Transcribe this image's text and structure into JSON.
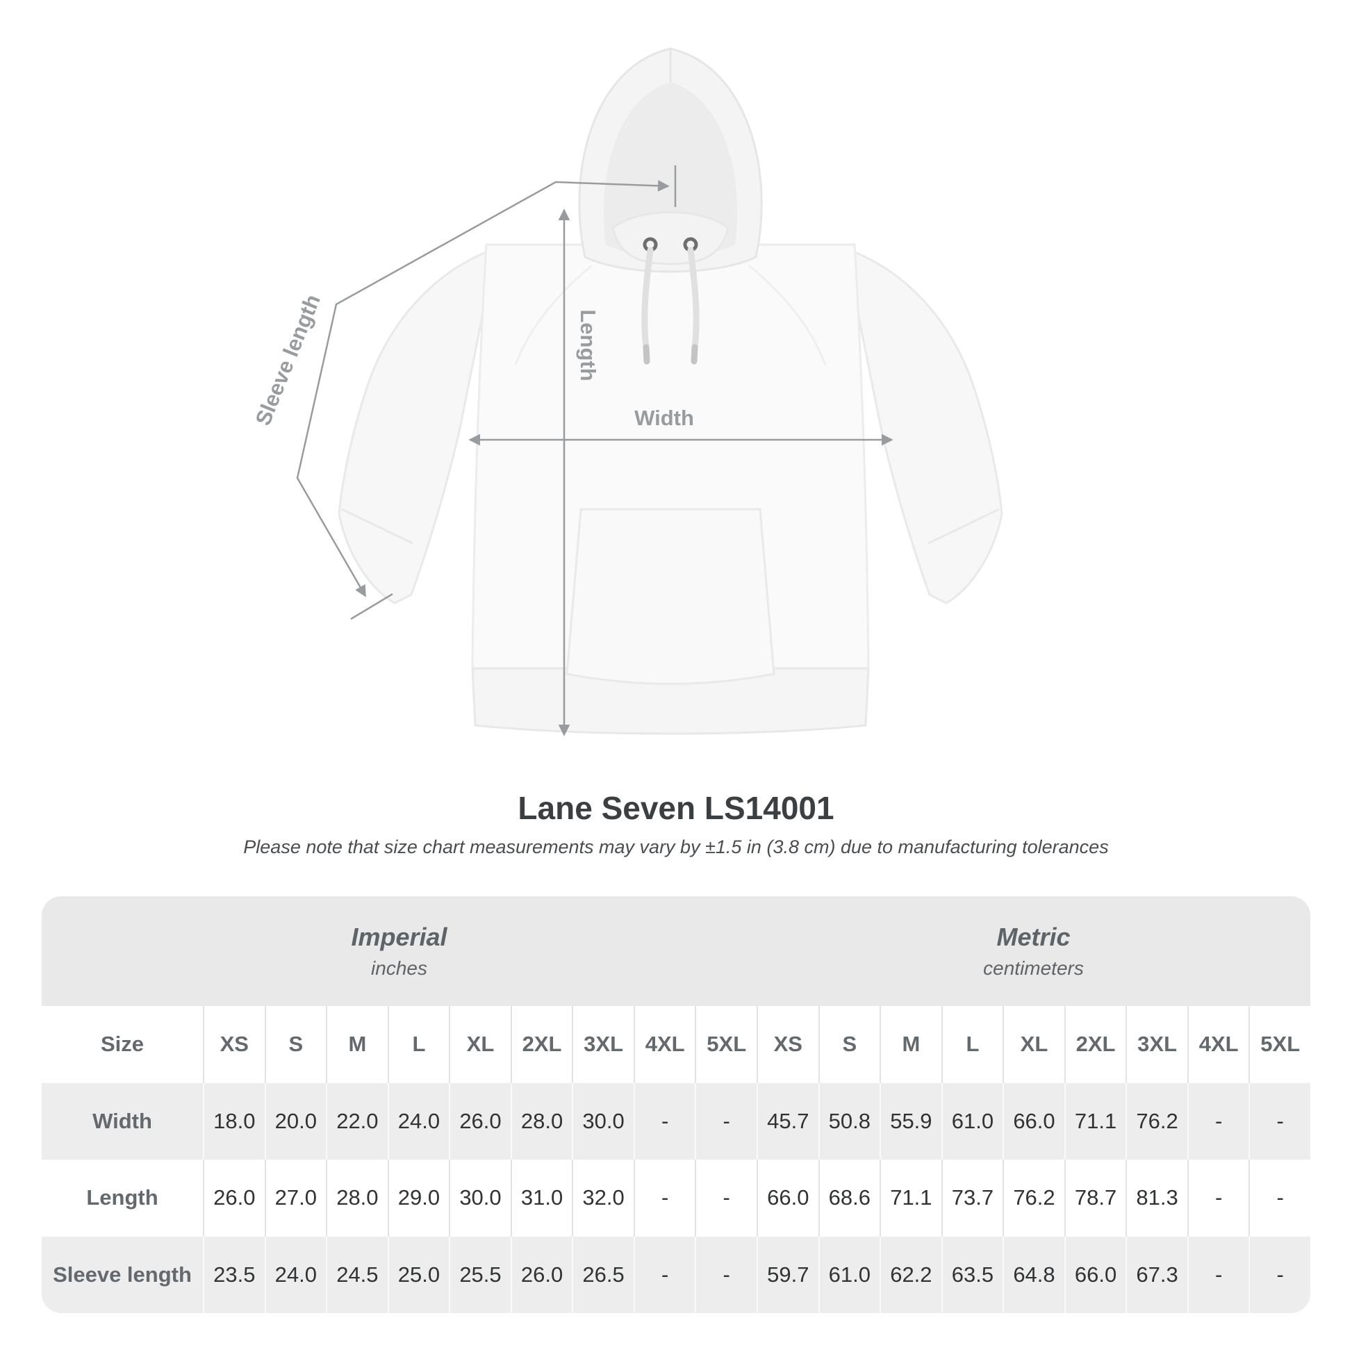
{
  "product": {
    "title": "Lane Seven LS14001",
    "tolerance_note": "Please note that size chart measurements may vary by ±1.5 in (3.8 cm) due to manufacturing tolerances"
  },
  "diagram": {
    "sleeve_length_label": "Sleeve length",
    "length_label": "Length",
    "width_label": "Width"
  },
  "size_table": {
    "corner_label": "Size",
    "unit_groups": [
      {
        "name": "Imperial",
        "unit": "inches"
      },
      {
        "name": "Metric",
        "unit": "centimeters"
      }
    ],
    "sizes": [
      "XS",
      "S",
      "M",
      "L",
      "XL",
      "2XL",
      "3XL",
      "4XL",
      "5XL"
    ],
    "rows": [
      {
        "label": "Width",
        "imperial": [
          "18.0",
          "20.0",
          "22.0",
          "24.0",
          "26.0",
          "28.0",
          "30.0",
          "-",
          "-"
        ],
        "metric": [
          "45.7",
          "50.8",
          "55.9",
          "61.0",
          "66.0",
          "71.1",
          "76.2",
          "-",
          "-"
        ]
      },
      {
        "label": "Length",
        "imperial": [
          "26.0",
          "27.0",
          "28.0",
          "29.0",
          "30.0",
          "31.0",
          "32.0",
          "-",
          "-"
        ],
        "metric": [
          "66.0",
          "68.6",
          "71.1",
          "73.7",
          "76.2",
          "78.7",
          "81.3",
          "-",
          "-"
        ]
      },
      {
        "label": "Sleeve length",
        "imperial": [
          "23.5",
          "24.0",
          "24.5",
          "25.0",
          "25.5",
          "26.0",
          "26.5",
          "-",
          "-"
        ],
        "metric": [
          "59.7",
          "61.0",
          "62.2",
          "63.5",
          "64.8",
          "66.0",
          "67.3",
          "-",
          "-"
        ]
      }
    ]
  },
  "colors": {
    "measurement_line": "#989c9e",
    "table_header_bg": "#e9e9e9",
    "table_stripe_bg": "#ededed",
    "heading_text": "#3c3f41",
    "muted_text": "#5d6367",
    "value_text": "#303234"
  }
}
